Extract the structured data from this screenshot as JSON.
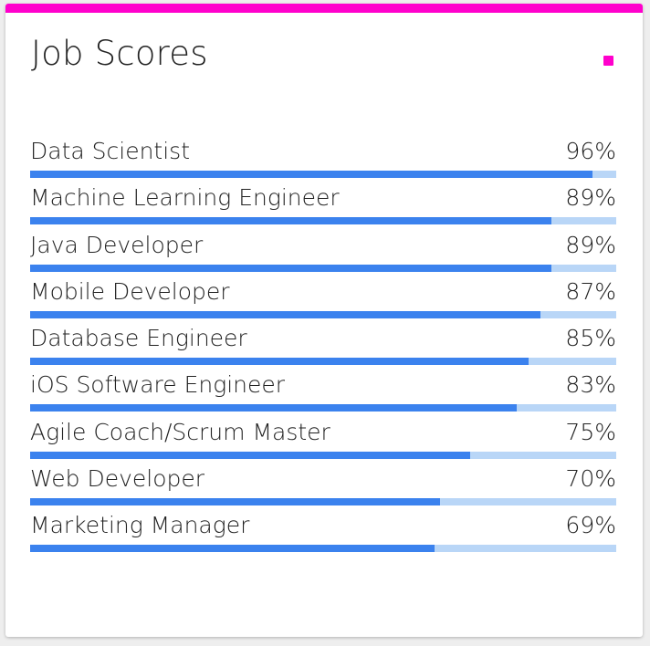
{
  "card": {
    "title": "Job Scores",
    "accent_color": "#ff00cc",
    "bar_color": "#3b82ee",
    "track_color": "#b9d6f7"
  },
  "jobs": [
    {
      "label": "Data Scientist",
      "percent_text": "96%",
      "score": 96
    },
    {
      "label": "Machine Learning Engineer",
      "percent_text": "89%",
      "score": 89
    },
    {
      "label": "Java Developer",
      "percent_text": "89%",
      "score": 89
    },
    {
      "label": "Mobile Developer",
      "percent_text": "87%",
      "score": 87
    },
    {
      "label": "Database Engineer",
      "percent_text": "85%",
      "score": 85
    },
    {
      "label": "iOS Software Engineer",
      "percent_text": "83%",
      "score": 83
    },
    {
      "label": "Agile Coach/Scrum Master",
      "percent_text": "75%",
      "score": 75
    },
    {
      "label": "Web Developer",
      "percent_text": "70%",
      "score": 70
    },
    {
      "label": "Marketing Manager",
      "percent_text": "69%",
      "score": 69
    }
  ]
}
